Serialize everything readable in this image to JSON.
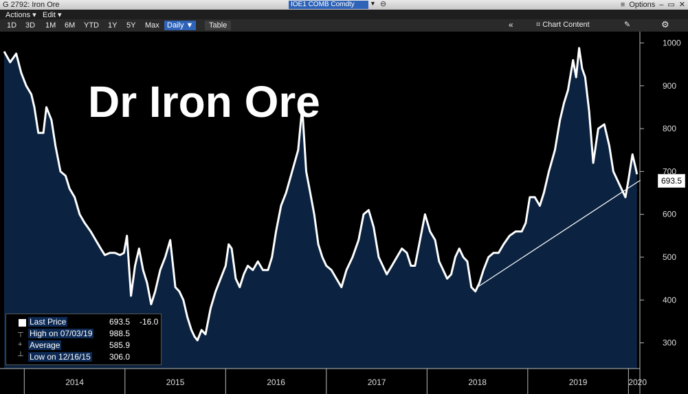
{
  "window": {
    "title": "G 2792: Iron Ore",
    "ticker": "IOE1 COMB Comdty",
    "options_label": "Options",
    "menu_indicator": "≡"
  },
  "menu": {
    "actions": "Actions ▾",
    "edit": "Edit ▾"
  },
  "toolbar": {
    "ranges": [
      "1D",
      "3D",
      "1M",
      "6M",
      "YTD",
      "1Y",
      "5Y",
      "Max"
    ],
    "daily": "Daily ▼",
    "table": "Table",
    "collapse": "«",
    "chart_content": "Chart Content"
  },
  "colors": {
    "bg": "#000000",
    "area": "#0b2340",
    "line": "#ffffff",
    "grid": "#1e3a5f",
    "accent": "#2f63b8"
  },
  "legend": {
    "last_price": {
      "label": "Last Price",
      "value": "693.5",
      "change": "-16.0"
    },
    "high": {
      "label": "High on 07/03/19",
      "value": "988.5"
    },
    "average": {
      "label": "Average",
      "value": "585.9"
    },
    "low": {
      "label": "Low on 12/16/15",
      "value": "306.0"
    }
  },
  "last_price_tag": "693.5",
  "chart_data": {
    "type": "area",
    "title": "Dr Iron Ore",
    "y_ticks": [
      300,
      400,
      500,
      600,
      700,
      800,
      900,
      1000
    ],
    "ylim": [
      240,
      1020
    ],
    "x_tick_labels": [
      "2014",
      "2015",
      "2016",
      "2017",
      "2018",
      "2019",
      "2020"
    ],
    "xlim": [
      2013.8,
      2020.1
    ],
    "series": [
      {
        "name": "Last Price",
        "points": [
          [
            2013.8,
            980
          ],
          [
            2013.86,
            955
          ],
          [
            2013.92,
            975
          ],
          [
            2013.97,
            930
          ],
          [
            2014.02,
            900
          ],
          [
            2014.07,
            880
          ],
          [
            2014.1,
            850
          ],
          [
            2014.14,
            790
          ],
          [
            2014.19,
            790
          ],
          [
            2014.22,
            850
          ],
          [
            2014.27,
            820
          ],
          [
            2014.31,
            760
          ],
          [
            2014.36,
            700
          ],
          [
            2014.41,
            690
          ],
          [
            2014.45,
            660
          ],
          [
            2014.5,
            640
          ],
          [
            2014.55,
            600
          ],
          [
            2014.6,
            580
          ],
          [
            2014.66,
            560
          ],
          [
            2014.71,
            540
          ],
          [
            2014.76,
            520
          ],
          [
            2014.8,
            505
          ],
          [
            2014.85,
            510
          ],
          [
            2014.9,
            510
          ],
          [
            2014.95,
            505
          ],
          [
            2014.99,
            510
          ],
          [
            2015.02,
            550
          ],
          [
            2015.06,
            410
          ],
          [
            2015.1,
            480
          ],
          [
            2015.14,
            520
          ],
          [
            2015.18,
            470
          ],
          [
            2015.22,
            440
          ],
          [
            2015.26,
            390
          ],
          [
            2015.3,
            420
          ],
          [
            2015.35,
            470
          ],
          [
            2015.4,
            500
          ],
          [
            2015.45,
            540
          ],
          [
            2015.5,
            430
          ],
          [
            2015.54,
            420
          ],
          [
            2015.58,
            400
          ],
          [
            2015.62,
            360
          ],
          [
            2015.66,
            330
          ],
          [
            2015.69,
            315
          ],
          [
            2015.72,
            306
          ],
          [
            2015.76,
            330
          ],
          [
            2015.8,
            320
          ],
          [
            2015.85,
            380
          ],
          [
            2015.9,
            420
          ],
          [
            2015.95,
            450
          ],
          [
            2016.0,
            480
          ],
          [
            2016.03,
            530
          ],
          [
            2016.06,
            520
          ],
          [
            2016.1,
            450
          ],
          [
            2016.14,
            430
          ],
          [
            2016.18,
            460
          ],
          [
            2016.22,
            480
          ],
          [
            2016.27,
            470
          ],
          [
            2016.32,
            490
          ],
          [
            2016.37,
            470
          ],
          [
            2016.42,
            470
          ],
          [
            2016.46,
            500
          ],
          [
            2016.5,
            560
          ],
          [
            2016.55,
            620
          ],
          [
            2016.6,
            650
          ],
          [
            2016.66,
            700
          ],
          [
            2016.72,
            750
          ],
          [
            2016.76,
            850
          ],
          [
            2016.8,
            700
          ],
          [
            2016.84,
            650
          ],
          [
            2016.88,
            600
          ],
          [
            2016.92,
            530
          ],
          [
            2016.96,
            500
          ],
          [
            2017.0,
            480
          ],
          [
            2017.05,
            470
          ],
          [
            2017.1,
            450
          ],
          [
            2017.15,
            430
          ],
          [
            2017.2,
            470
          ],
          [
            2017.26,
            500
          ],
          [
            2017.32,
            540
          ],
          [
            2017.37,
            600
          ],
          [
            2017.42,
            610
          ],
          [
            2017.47,
            570
          ],
          [
            2017.52,
            500
          ],
          [
            2017.56,
            480
          ],
          [
            2017.6,
            460
          ],
          [
            2017.65,
            480
          ],
          [
            2017.7,
            500
          ],
          [
            2017.75,
            520
          ],
          [
            2017.8,
            510
          ],
          [
            2017.84,
            480
          ],
          [
            2017.88,
            480
          ],
          [
            2017.93,
            540
          ],
          [
            2017.98,
            600
          ],
          [
            2018.03,
            560
          ],
          [
            2018.08,
            540
          ],
          [
            2018.12,
            490
          ],
          [
            2018.16,
            470
          ],
          [
            2018.2,
            450
          ],
          [
            2018.24,
            460
          ],
          [
            2018.28,
            500
          ],
          [
            2018.32,
            520
          ],
          [
            2018.36,
            500
          ],
          [
            2018.4,
            490
          ],
          [
            2018.44,
            430
          ],
          [
            2018.48,
            420
          ],
          [
            2018.52,
            440
          ],
          [
            2018.56,
            470
          ],
          [
            2018.61,
            500
          ],
          [
            2018.66,
            510
          ],
          [
            2018.71,
            510
          ],
          [
            2018.76,
            530
          ],
          [
            2018.82,
            550
          ],
          [
            2018.88,
            560
          ],
          [
            2018.94,
            560
          ],
          [
            2018.98,
            580
          ],
          [
            2019.02,
            640
          ],
          [
            2019.07,
            640
          ],
          [
            2019.12,
            620
          ],
          [
            2019.16,
            650
          ],
          [
            2019.21,
            700
          ],
          [
            2019.27,
            750
          ],
          [
            2019.32,
            820
          ],
          [
            2019.36,
            860
          ],
          [
            2019.4,
            890
          ],
          [
            2019.45,
            960
          ],
          [
            2019.48,
            920
          ],
          [
            2019.51,
            988
          ],
          [
            2019.54,
            940
          ],
          [
            2019.57,
            920
          ],
          [
            2019.61,
            840
          ],
          [
            2019.65,
            720
          ],
          [
            2019.7,
            800
          ],
          [
            2019.76,
            810
          ],
          [
            2019.81,
            760
          ],
          [
            2019.85,
            700
          ],
          [
            2019.89,
            680
          ],
          [
            2019.93,
            660
          ],
          [
            2019.97,
            640
          ],
          [
            2020.0,
            680
          ],
          [
            2020.04,
            740
          ],
          [
            2020.07,
            710
          ],
          [
            2020.085,
            693.5
          ]
        ]
      }
    ],
    "trendline": [
      [
        2018.5,
        430
      ],
      [
        2020.12,
        680
      ]
    ]
  }
}
